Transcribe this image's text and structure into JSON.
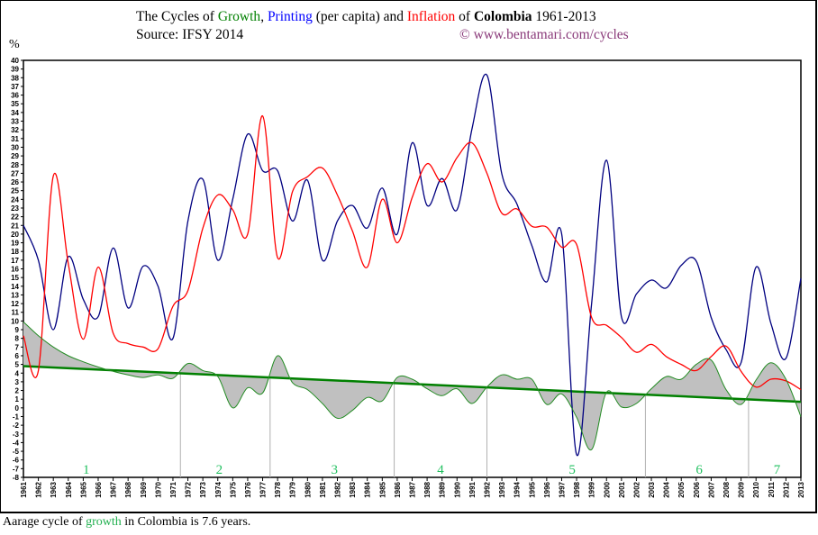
{
  "header": {
    "title_parts": [
      "The Cycles of ",
      "Growth",
      ", ",
      "Printing",
      " (per capita) and ",
      "Inflation",
      " of ",
      "Colombia",
      " 1961-2013"
    ],
    "source": "Source: IFSY  2014",
    "copyright": "© www.bentamari.com/cycles"
  },
  "footer": {
    "parts": [
      "Aarage cycle of ",
      "growth",
      " in Colombia is 7.6 years."
    ]
  },
  "chart_data": {
    "type": "line",
    "ylabel": "%",
    "ylim": [
      -8,
      40
    ],
    "yticks": [
      -8,
      -7,
      -6,
      -5,
      -4,
      -3,
      -2,
      -1,
      0,
      1,
      2,
      3,
      4,
      5,
      6,
      7,
      8,
      9,
      10,
      11,
      12,
      13,
      14,
      15,
      16,
      17,
      18,
      19,
      20,
      21,
      22,
      23,
      24,
      25,
      26,
      27,
      28,
      29,
      30,
      31,
      32,
      33,
      34,
      35,
      36,
      37,
      38,
      39,
      40
    ],
    "x": [
      1961,
      1962,
      1963,
      1964,
      1965,
      1966,
      1967,
      1968,
      1969,
      1970,
      1971,
      1972,
      1973,
      1974,
      1975,
      1976,
      1977,
      1978,
      1979,
      1980,
      1981,
      1982,
      1983,
      1984,
      1985,
      1986,
      1987,
      1988,
      1989,
      1990,
      1991,
      1992,
      1993,
      1994,
      1995,
      1996,
      1997,
      1998,
      1999,
      2000,
      2001,
      2002,
      2003,
      2004,
      2005,
      2006,
      2007,
      2008,
      2009,
      2010,
      2011,
      2012,
      2013
    ],
    "series": [
      {
        "name": "Printing",
        "color": "#000080",
        "values": [
          21,
          17,
          9,
          17.4,
          12.5,
          10.5,
          18.4,
          11.5,
          16.3,
          14,
          8,
          21.5,
          26.3,
          17,
          24,
          31.5,
          27.3,
          27.3,
          21.5,
          26.2,
          17,
          21.5,
          23.3,
          20.7,
          25.3,
          20,
          30.5,
          23.3,
          26.4,
          22.8,
          32.1,
          38.3,
          26.9,
          23.5,
          18.7,
          14.5,
          20,
          -5.4,
          12,
          28.5,
          10.5,
          13.1,
          14.7,
          13.8,
          16.4,
          16.9,
          10.4,
          6.7,
          5.2,
          16.2,
          9.7,
          5.7,
          14.9
        ]
      },
      {
        "name": "Inflation",
        "color": "#ff0000",
        "values": [
          8.3,
          4.3,
          26.7,
          16.6,
          7.9,
          16.2,
          8.6,
          7.4,
          7,
          6.8,
          11.7,
          13.5,
          20.7,
          24.5,
          22.8,
          20,
          33.6,
          17.3,
          24.9,
          26.6,
          27.6,
          24.5,
          20.4,
          16.2,
          24,
          19,
          24.2,
          28.1,
          26,
          28.8,
          30.5,
          27,
          22.4,
          22.9,
          20.9,
          20.8,
          18.5,
          18.8,
          10.4,
          9.5,
          8.1,
          6.4,
          7.3,
          5.9,
          5,
          4.3,
          5.9,
          7.1,
          4.2,
          2.4,
          3.3,
          3.1,
          2.1
        ]
      },
      {
        "name": "Growth",
        "color": "#228b22",
        "values": [
          9.9,
          8.3,
          7,
          6,
          5.3,
          4.7,
          4.2,
          3.8,
          3.5,
          3.8,
          3.4,
          5.1,
          4.3,
          3.6,
          0,
          2.3,
          1.7,
          6,
          2.9,
          2.1,
          0.5,
          -1.2,
          -0.3,
          1.2,
          0.8,
          3.5,
          3.3,
          2.2,
          1.4,
          2.2,
          0.5,
          2.4,
          3.8,
          3.3,
          3.3,
          0.4,
          1.6,
          -1.1,
          -4.8,
          1.8,
          0.1,
          0.5,
          2.2,
          3.6,
          3.3,
          5,
          5.5,
          2.1,
          0.4,
          3.2,
          5.2,
          3.3,
          -1
        ]
      }
    ],
    "trend": {
      "color": "#008000",
      "from": [
        1961,
        4.8
      ],
      "to": [
        2013,
        0.7
      ]
    },
    "cycle_boundaries": [
      1971.5,
      1977.5,
      1985.8,
      1992,
      2002.6,
      2009.5
    ],
    "cycle_labels": [
      {
        "label": "1",
        "year": 1965.2
      },
      {
        "label": "2",
        "year": 1974.1
      },
      {
        "label": "3",
        "year": 1981.8
      },
      {
        "label": "4",
        "year": 1988.9
      },
      {
        "label": "5",
        "year": 1997.7
      },
      {
        "label": "6",
        "year": 2006.2
      },
      {
        "label": "7",
        "year": 2011.4
      }
    ],
    "cycle_label_color": "#22c060",
    "area_fill": "#c0c0c0"
  }
}
